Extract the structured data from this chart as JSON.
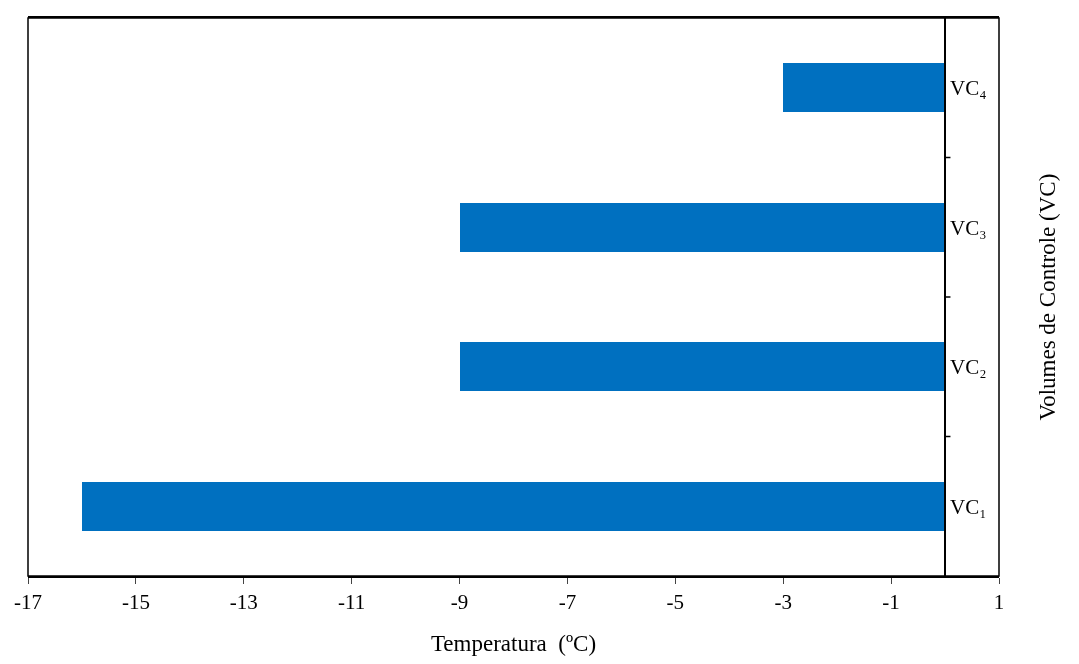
{
  "chart_data": {
    "type": "bar",
    "orientation": "horizontal",
    "xlabel": "Temperatura  (ºC)",
    "ylabel": "Volumes de Controle (VC)",
    "categories": [
      "VC₄",
      "VC₃",
      "VC₂",
      "VC₁"
    ],
    "values": [
      -3,
      -9,
      -9,
      -16
    ],
    "color": "#0070c0",
    "xlim": [
      -17,
      1
    ],
    "xticks": [
      -17,
      -15,
      -13,
      -11,
      -9,
      -7,
      -5,
      -3,
      -1,
      1
    ],
    "legend": false
  }
}
